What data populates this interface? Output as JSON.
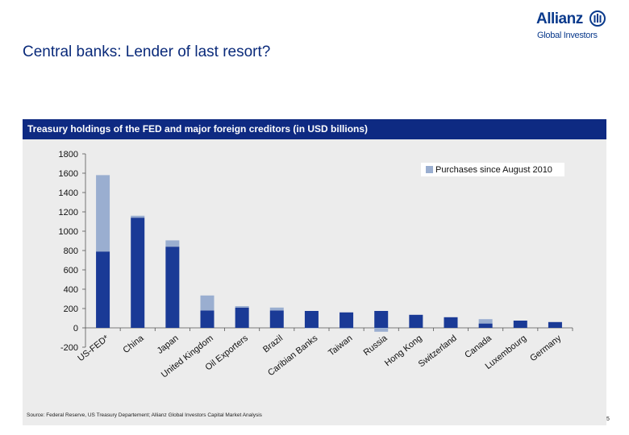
{
  "slide": {
    "title": "Central banks: Lender of last resort?",
    "page_number": "5",
    "source": "Source: Federal Reserve, US Treasury Departement; Allianz Global Investors Capital Market Analysis"
  },
  "logo": {
    "wordmark": "Allianz",
    "subtitle": "Global Investors",
    "color": "#0a3a8c"
  },
  "chart_data": {
    "type": "bar",
    "stacked": true,
    "title": "Treasury holdings of the FED and major foreign creditors (in USD billions)",
    "categories": [
      "US-FED*",
      "China",
      "Japan",
      "United Kingdom",
      "Oil Exporters",
      "Brazil",
      "Caribian Banks",
      "Taiwan",
      "Russia",
      "Hong Kong",
      "Switzerland",
      "Canada",
      "Luxembourg",
      "Germany"
    ],
    "series": [
      {
        "key": "base",
        "color": "#1a3a96",
        "values": [
          790,
          1140,
          840,
          180,
          210,
          180,
          175,
          160,
          175,
          135,
          110,
          45,
          75,
          60
        ]
      },
      {
        "key": "purchases",
        "name": "Purchases since August 2010",
        "color": "#9aaed0",
        "values": [
          790,
          20,
          65,
          155,
          15,
          30,
          -5,
          -10,
          -40,
          0,
          0,
          45,
          0,
          0
        ]
      }
    ],
    "yticks": [
      -200,
      0,
      200,
      400,
      600,
      800,
      1000,
      1200,
      1400,
      1600,
      1800
    ],
    "ylim": [
      -200,
      1800
    ],
    "legend_position": "top-right",
    "grid": false
  }
}
